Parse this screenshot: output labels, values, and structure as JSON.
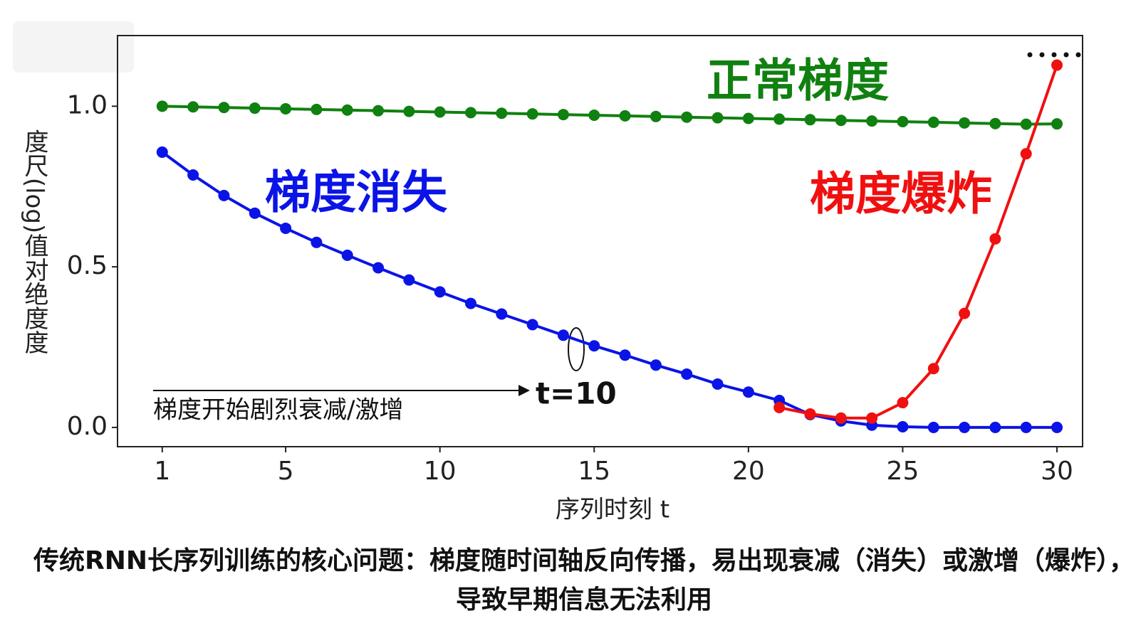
{
  "chart_data": {
    "type": "line",
    "ylabel": "度尺(log)值对绝度度",
    "xlabel": "序列时刻 t",
    "x": [
      1,
      2,
      3,
      4,
      5,
      6,
      7,
      8,
      9,
      10,
      11,
      12,
      13,
      14,
      15,
      16,
      17,
      18,
      19,
      20,
      21,
      22,
      23,
      24,
      25,
      26,
      27,
      28,
      29,
      30
    ],
    "xlim": [
      -0.45,
      30.83
    ],
    "xticks": [
      1,
      5,
      10,
      15,
      20,
      25,
      30
    ],
    "ylim": [
      -0.06,
      1.22
    ],
    "yticks": [
      {
        "value": 0.0,
        "label": "0.0"
      },
      {
        "value": 0.5,
        "label": "0.5"
      },
      {
        "value": 1.0,
        "label": "1.0"
      }
    ],
    "series": [
      {
        "name": "正常梯度",
        "color": "#108010",
        "values": [
          1.0,
          0.998,
          0.996,
          0.994,
          0.992,
          0.99,
          0.988,
          0.986,
          0.984,
          0.982,
          0.98,
          0.978,
          0.976,
          0.974,
          0.972,
          0.97,
          0.968,
          0.966,
          0.964,
          0.962,
          0.96,
          0.958,
          0.956,
          0.954,
          0.952,
          0.95,
          0.948,
          0.946,
          0.944,
          0.945
        ]
      },
      {
        "name": "梯度消失",
        "color": "#0a14e6",
        "values": [
          0.857,
          0.786,
          0.722,
          0.667,
          0.62,
          0.576,
          0.536,
          0.497,
          0.459,
          0.422,
          0.386,
          0.353,
          0.32,
          0.287,
          0.254,
          0.225,
          0.194,
          0.166,
          0.135,
          0.11,
          0.084,
          0.04,
          0.02,
          0.007,
          0.002,
          0.0,
          0.0,
          0.0,
          0.0,
          0.0
        ]
      },
      {
        "name": "梯度爆炸",
        "color": "#f01010",
        "values": [
          null,
          null,
          null,
          null,
          null,
          null,
          null,
          null,
          null,
          null,
          null,
          null,
          null,
          null,
          null,
          null,
          null,
          null,
          null,
          null,
          0.062,
          0.042,
          0.029,
          0.029,
          0.077,
          0.183,
          0.355,
          0.587,
          0.852,
          1.128
        ]
      }
    ],
    "annotations": [
      "t=10",
      "梯度开始剧烈衰减/激增"
    ],
    "caption": [
      "传统RNN长序列训练的核心问题：梯度随时间轴反向传播，易出现衰减（消失）或激增（爆炸），",
      "导致早期信息无法利用"
    ]
  }
}
